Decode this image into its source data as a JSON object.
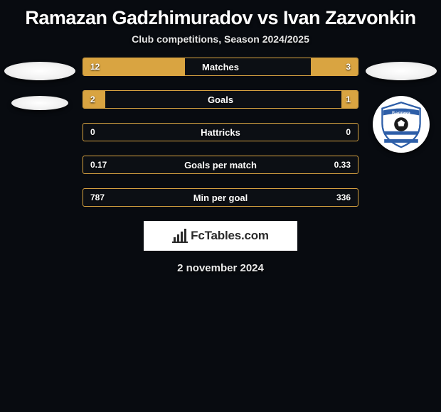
{
  "title": "Ramazan Gadzhimuradov vs Ivan Zazvonkin",
  "subtitle": "Club competitions, Season 2024/2025",
  "date": "2 november 2024",
  "logo_text": "FcTables.com",
  "bg_color": "#080b10",
  "accent_color": "#d9a441",
  "text_color": "#ffffff",
  "right_club": {
    "name": "Балтика",
    "shield_fill": "#ffffff",
    "shield_stroke": "#2d5ea8",
    "ball_color": "#1a1a1a",
    "stripe_color": "#2d5ea8",
    "banner_text": "Балтика",
    "banner_fill": "#2d5ea8"
  },
  "stats": [
    {
      "label": "Matches",
      "left_value": "12",
      "right_value": "3",
      "left_pct": 37,
      "right_pct": 17
    },
    {
      "label": "Goals",
      "left_value": "2",
      "right_value": "1",
      "left_pct": 8,
      "right_pct": 6
    },
    {
      "label": "Hattricks",
      "left_value": "0",
      "right_value": "0",
      "left_pct": 0,
      "right_pct": 0
    },
    {
      "label": "Goals per match",
      "left_value": "0.17",
      "right_value": "0.33",
      "left_pct": 0,
      "right_pct": 0
    },
    {
      "label": "Min per goal",
      "left_value": "787",
      "right_value": "336",
      "left_pct": 0,
      "right_pct": 0
    }
  ]
}
